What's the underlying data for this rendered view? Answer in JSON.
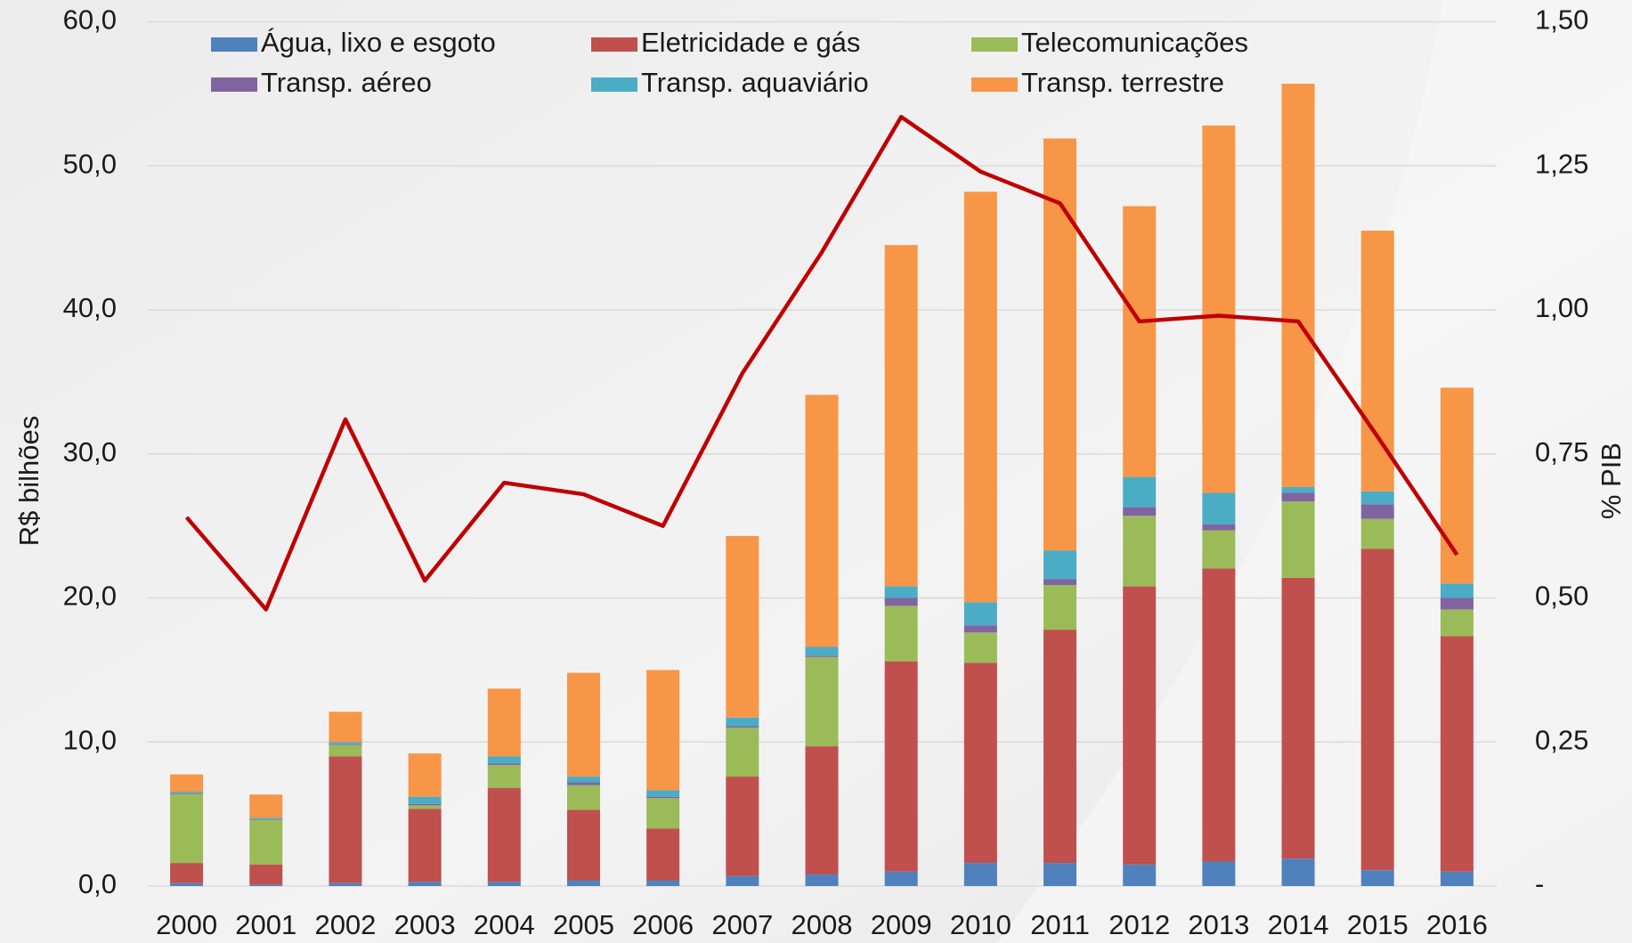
{
  "chart_data": {
    "type": "bar",
    "stacked": true,
    "grid": true,
    "y_label": "R$ bilhões",
    "y2_label": "% PIB",
    "categories": [
      "2000",
      "2001",
      "2002",
      "2003",
      "2004",
      "2005",
      "2006",
      "2007",
      "2008",
      "2009",
      "2010",
      "2011",
      "2012",
      "2013",
      "2014",
      "2015",
      "2016"
    ],
    "ylim": [
      0,
      60
    ],
    "yticks": [
      {
        "value": 0,
        "label": "0,0"
      },
      {
        "value": 10,
        "label": "10,0"
      },
      {
        "value": 20,
        "label": "20,0"
      },
      {
        "value": 30,
        "label": "30,0"
      },
      {
        "value": 40,
        "label": "40,0"
      },
      {
        "value": 50,
        "label": "50,0"
      },
      {
        "value": 60,
        "label": "60,0"
      }
    ],
    "y2lim": [
      0,
      1.5
    ],
    "y2ticks": [
      {
        "value": 0,
        "label": "-"
      },
      {
        "value": 0.25,
        "label": "0,25"
      },
      {
        "value": 0.5,
        "label": "0,50"
      },
      {
        "value": 0.75,
        "label": "0,75"
      },
      {
        "value": 1.0,
        "label": "1,00"
      },
      {
        "value": 1.25,
        "label": "1,25"
      },
      {
        "value": 1.5,
        "label": "1,50"
      }
    ],
    "series": [
      {
        "name": "Água, lixo e esgoto",
        "color": "#4f81bd",
        "type": "bar",
        "values": [
          0.2,
          0.1,
          0.2,
          0.3,
          0.3,
          0.4,
          0.4,
          0.7,
          0.8,
          1.0,
          1.6,
          1.6,
          1.5,
          1.7,
          1.9,
          1.1,
          1.0
        ]
      },
      {
        "name": "Eletricidade e gás",
        "color": "#c0504d",
        "type": "bar",
        "values": [
          1.4,
          1.4,
          8.8,
          5.05,
          6.5,
          4.9,
          3.6,
          6.9,
          8.9,
          14.6,
          13.9,
          16.2,
          19.3,
          20.35,
          19.5,
          22.3,
          16.35
        ]
      },
      {
        "name": "Telecomunicações",
        "color": "#9bbb59",
        "type": "bar",
        "values": [
          4.8,
          3.1,
          0.8,
          0.25,
          1.6,
          1.7,
          2.1,
          3.4,
          6.2,
          3.85,
          2.1,
          3.1,
          4.9,
          2.65,
          5.3,
          2.1,
          1.85
        ]
      },
      {
        "name": "Transp. aéreo",
        "color": "#8064a2",
        "type": "bar",
        "values": [
          0.05,
          0.05,
          0.05,
          0.1,
          0.1,
          0.2,
          0.1,
          0.1,
          0.1,
          0.55,
          0.5,
          0.4,
          0.6,
          0.4,
          0.6,
          1.0,
          0.8
        ]
      },
      {
        "name": "Transp. aquaviário",
        "color": "#4bacc6",
        "type": "bar",
        "values": [
          0.1,
          0.1,
          0.15,
          0.5,
          0.5,
          0.4,
          0.45,
          0.6,
          0.6,
          0.8,
          1.6,
          2.0,
          2.1,
          2.2,
          0.4,
          0.9,
          1.0
        ]
      },
      {
        "name": "Transp. terrestre",
        "color": "#f79646",
        "type": "bar",
        "values": [
          1.2,
          1.6,
          2.1,
          3.0,
          4.7,
          7.2,
          8.35,
          12.6,
          17.5,
          23.7,
          28.5,
          28.6,
          18.8,
          25.5,
          28.0,
          18.1,
          13.6
        ]
      },
      {
        "color": "#c00000",
        "type": "line",
        "axis": "y2",
        "values": [
          0.64,
          0.48,
          0.81,
          0.53,
          0.7,
          0.68,
          0.625,
          0.89,
          1.1,
          1.335,
          1.24,
          1.185,
          0.98,
          0.99,
          0.98,
          0.78,
          0.575
        ]
      }
    ]
  }
}
